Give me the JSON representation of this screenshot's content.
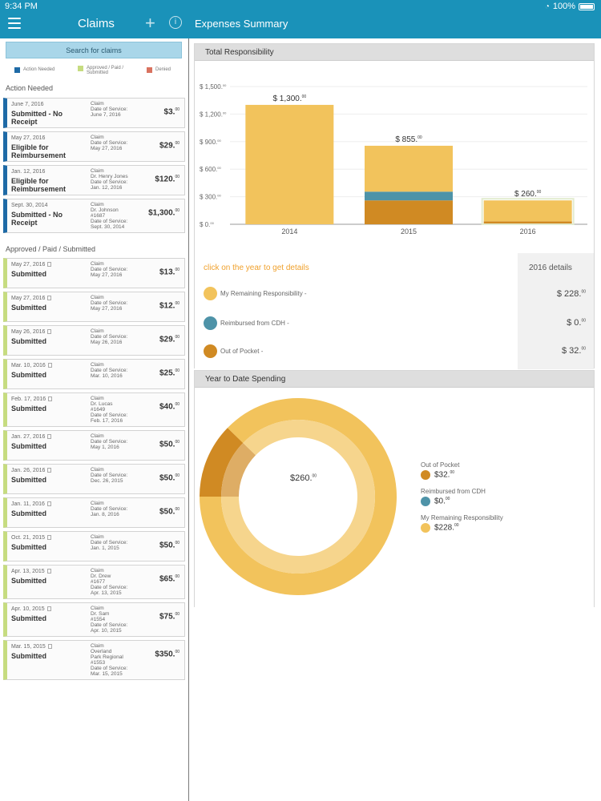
{
  "status_bar": {
    "time": "9:34 PM",
    "battery": "100%"
  },
  "header": {
    "claims_title": "Claims",
    "summary_title": "Expenses Summary"
  },
  "left": {
    "search_label": "Search for claims",
    "legend": {
      "action": "Action Needed",
      "approved": "Approved / Paid / Submitted",
      "denied": "Denied",
      "colors": {
        "action": "#1e6aa6",
        "approved": "#c6dc80",
        "denied": "#d9725f"
      }
    },
    "section_action": "Action Needed",
    "section_approved": "Approved / Paid / Submitted",
    "action_claims": [
      {
        "date": "June 7, 2016",
        "status": "Submitted - No Receipt",
        "details": "Claim\nDate of Service:\nJune 7, 2016",
        "amount": "$3.",
        "cents": "00"
      },
      {
        "date": "May 27, 2016",
        "status": "Eligible for Reimbursement",
        "details": "Claim\nDate of Service:\nMay 27, 2016",
        "amount": "$29.",
        "cents": "00"
      },
      {
        "date": "Jan. 12, 2016",
        "status": "Eligible for Reimbursement",
        "details": "Claim\nDr. Henry Jones\nDate of Service:\nJan. 12, 2016",
        "amount": "$120.",
        "cents": "00"
      },
      {
        "date": "Sept. 30, 2014",
        "status": "Submitted - No Receipt",
        "details": "Claim\nDr. Johnson\n#1687\nDate of Service:\nSept. 30, 2014",
        "amount": "$1,300.",
        "cents": "00"
      }
    ],
    "approved_claims": [
      {
        "date": "May 27, 2016",
        "status": "Submitted",
        "details": "Claim\nDate of Service:\nMay 27, 2016",
        "amount": "$13.",
        "cents": "00"
      },
      {
        "date": "May 27, 2016",
        "status": "Submitted",
        "details": "Claim\nDate of Service:\nMay 27, 2016",
        "amount": "$12.",
        "cents": "00"
      },
      {
        "date": "May 26, 2016",
        "status": "Submitted",
        "details": "Claim\nDate of Service:\nMay 26, 2016",
        "amount": "$29.",
        "cents": "00"
      },
      {
        "date": "Mar. 10, 2016",
        "status": "Submitted",
        "details": "Claim\nDate of Service:\nMar. 10, 2016",
        "amount": "$25.",
        "cents": "00"
      },
      {
        "date": "Feb. 17, 2016",
        "status": "Submitted",
        "details": "Claim\nDr. Lucas\n#1649\nDate of Service:\nFeb. 17, 2016",
        "amount": "$40.",
        "cents": "00"
      },
      {
        "date": "Jan. 27, 2016",
        "status": "Submitted",
        "details": "Claim\nDate of Service:\nMay 1, 2016",
        "amount": "$50.",
        "cents": "00"
      },
      {
        "date": "Jan. 26, 2016",
        "status": "Submitted",
        "details": "Claim\nDate of Service:\nDec. 26, 2015",
        "amount": "$50.",
        "cents": "00"
      },
      {
        "date": "Jan. 11, 2016",
        "status": "Submitted",
        "details": "Claim\nDate of Service:\nJan. 8, 2016",
        "amount": "$50.",
        "cents": "00"
      },
      {
        "date": "Oct. 21, 2015",
        "status": "Submitted",
        "details": "Claim\nDate of Service:\nJan. 1, 2015",
        "amount": "$50.",
        "cents": "00"
      },
      {
        "date": "Apr. 13, 2015",
        "status": "Submitted",
        "details": "Claim\nDr. Drew\n#1677\nDate of Service:\nApr. 13, 2015",
        "amount": "$65.",
        "cents": "00"
      },
      {
        "date": "Apr. 10, 2015",
        "status": "Submitted",
        "details": "Claim\nDr. Sam\n#1554\nDate of Service:\nApr. 10, 2015",
        "amount": "$75.",
        "cents": "00"
      },
      {
        "date": "Mar. 15, 2015",
        "status": "Submitted",
        "details": "Claim\nOverland\nPark Regional\n#1553\nDate of Service:\nMar. 15, 2015",
        "amount": "$350.",
        "cents": "00"
      }
    ]
  },
  "total_card": {
    "title": "Total Responsibility",
    "hint": "click on the year to get details",
    "details_title": "2016 details",
    "legend": [
      {
        "label": "My Remaining Responsibility -",
        "value": "$ 228.",
        "cents": "00",
        "color": "#f2c35c"
      },
      {
        "label": "Reimbursed from CDH -",
        "value": "$ 0.",
        "cents": "00",
        "color": "#4e93a8"
      },
      {
        "label": "Out of Pocket -",
        "value": "$ 32.",
        "cents": "00",
        "color": "#d08a23"
      }
    ]
  },
  "ytd_card": {
    "title": "Year to Date Spending",
    "center_value": "$260.",
    "center_cents": "00",
    "legend": [
      {
        "label": "Out of Pocket",
        "value": "$32.",
        "cents": "00",
        "color": "#d08a23"
      },
      {
        "label": "Reimbursed from CDH",
        "value": "$0.",
        "cents": "00",
        "color": "#4e93a8"
      },
      {
        "label": "My Remaining Responsibility",
        "value": "$228.",
        "cents": "00",
        "color": "#f2c35c"
      }
    ]
  },
  "chart_data": [
    {
      "type": "bar",
      "title": "Total Responsibility",
      "categories": [
        "2014",
        "2015",
        "2016"
      ],
      "series": [
        {
          "name": "Out of Pocket",
          "values": [
            0,
            260,
            32
          ],
          "color": "#d08a23"
        },
        {
          "name": "Reimbursed from CDH",
          "values": [
            0,
            95,
            0
          ],
          "color": "#4e93a8"
        },
        {
          "name": "My Remaining Responsibility",
          "values": [
            1300,
            500,
            228
          ],
          "color": "#f2c35c"
        }
      ],
      "totals": [
        "$ 1,300.",
        "$ 855.",
        "$ 260."
      ],
      "total_values": [
        1300,
        855,
        260
      ],
      "total_cents": "00",
      "yticks": [
        "$ 0.",
        "$ 300.",
        "$ 600.",
        "$ 900.",
        "$ 1,200.",
        "$ 1,500."
      ],
      "ytick_values": [
        0,
        300,
        600,
        900,
        1200,
        1500
      ],
      "ytick_cents": "00",
      "ylim": [
        0,
        1500
      ],
      "stacked": true,
      "selected": "2016"
    },
    {
      "type": "pie",
      "title": "Year to Date Spending",
      "labels": [
        "Out of Pocket",
        "Reimbursed from CDH",
        "My Remaining Responsibility"
      ],
      "values": [
        32,
        0,
        228
      ],
      "colors": [
        "#d08a23",
        "#4e93a8",
        "#f2c35c"
      ],
      "donut": true
    }
  ]
}
